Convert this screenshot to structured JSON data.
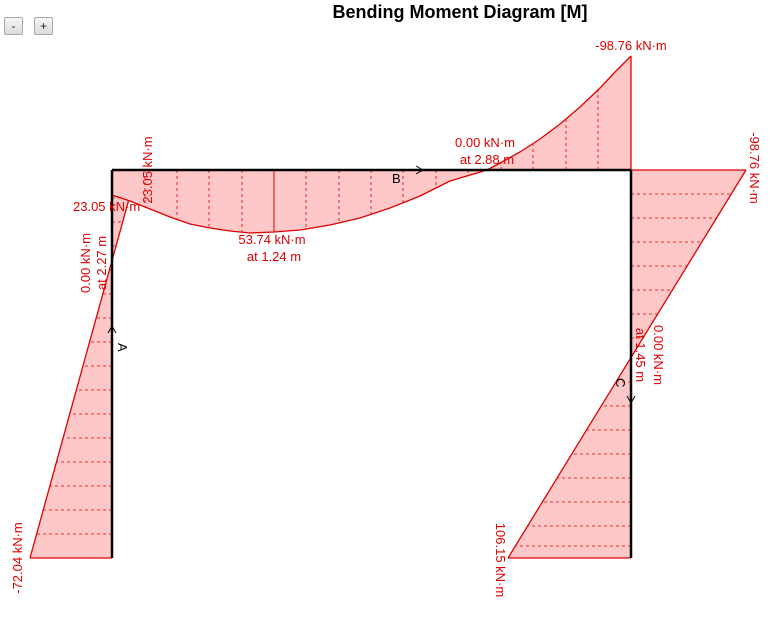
{
  "toolbar": {
    "zoom_out": "-",
    "zoom_in": "+"
  },
  "title": "Bending Moment Diagram [M]",
  "colors": {
    "moment_fill": "#ffc8c8",
    "moment_line": "#e00000",
    "frame": "#000000",
    "label": "#e00000"
  },
  "nodes": {
    "a": "A",
    "b": "B",
    "c": "C"
  },
  "labels": {
    "a_bottom": "-72.04 kN·m",
    "a_zero_value": "0.00 kN·m",
    "a_zero_pos": "at 2.27 m",
    "a_top_horizontal": "23.05 kN·m",
    "a_top_vertical": "23.05 kN·m",
    "b_max_value": "53.74 kN·m",
    "b_max_pos": "at 1.24 m",
    "b_zero_value": "0.00 kN·m",
    "b_zero_pos": "at 2.88 m",
    "b_end": "-98.76 kN·m",
    "c_top": "-98.76 kN·m",
    "c_zero_value": "0.00 kN·m",
    "c_zero_pos": "at 1.45 m",
    "c_bottom": "106.15 kN·m"
  }
}
